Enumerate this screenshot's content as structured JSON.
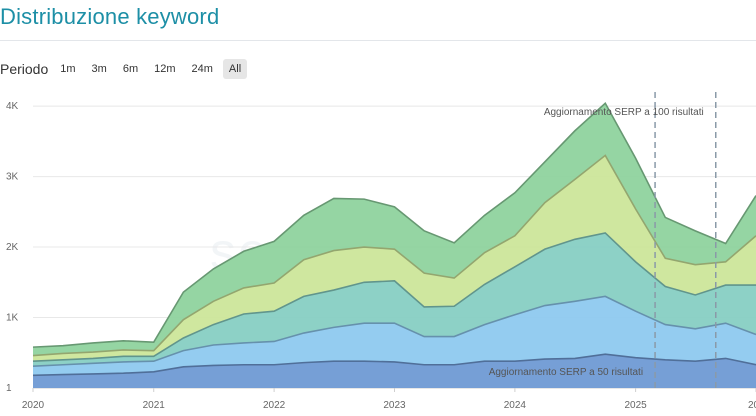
{
  "title": "Distribuzione keyword",
  "period": {
    "label": "Periodo",
    "options": [
      "1m",
      "3m",
      "6m",
      "12m",
      "24m",
      "All"
    ],
    "selected": "All"
  },
  "watermark": "seozoom",
  "chart_data": {
    "type": "area",
    "stacked": true,
    "x": [
      "2020-01",
      "2020-04",
      "2020-07",
      "2020-10",
      "2021-01",
      "2021-04",
      "2021-07",
      "2021-10",
      "2022-01",
      "2022-04",
      "2022-07",
      "2022-10",
      "2023-01",
      "2023-04",
      "2023-07",
      "2023-10",
      "2024-01",
      "2024-04",
      "2024-07",
      "2024-10",
      "2025-01",
      "2025-04",
      "2025-07",
      "2025-10",
      "2026-01"
    ],
    "x_ticks": [
      {
        "label": "2020",
        "date": "2020-01"
      },
      {
        "label": "2021",
        "date": "2021-01"
      },
      {
        "label": "2022",
        "date": "2022-01"
      },
      {
        "label": "2023",
        "date": "2023-01"
      },
      {
        "label": "2024",
        "date": "2024-01"
      },
      {
        "label": "2025",
        "date": "2025-01"
      },
      {
        "label": "202",
        "date": "2026-01"
      }
    ],
    "y_ticks": [
      {
        "label": "1",
        "value": 0
      },
      {
        "label": "1K",
        "value": 1000
      },
      {
        "label": "2K",
        "value": 2000
      },
      {
        "label": "3K",
        "value": 3000
      },
      {
        "label": "4K",
        "value": 4000
      }
    ],
    "ylim": [
      0,
      4200
    ],
    "grid": true,
    "series": [
      {
        "values": [
          180,
          190,
          200,
          210,
          230,
          300,
          320,
          330,
          330,
          360,
          380,
          380,
          370,
          330,
          330,
          380,
          380,
          410,
          420,
          480,
          430,
          400,
          380,
          420,
          330
        ],
        "color": "#6f9ad4"
      },
      {
        "values": [
          130,
          140,
          150,
          160,
          150,
          230,
          290,
          310,
          330,
          420,
          480,
          540,
          550,
          400,
          400,
          520,
          660,
          760,
          810,
          820,
          660,
          500,
          460,
          500,
          430
        ],
        "color": "#8ec9ef"
      },
      {
        "values": [
          70,
          70,
          70,
          80,
          70,
          180,
          290,
          410,
          430,
          520,
          530,
          580,
          600,
          420,
          430,
          570,
          680,
          800,
          880,
          900,
          700,
          540,
          480,
          540,
          700
        ],
        "color": "#87cfc3"
      },
      {
        "values": [
          80,
          90,
          90,
          90,
          80,
          260,
          330,
          370,
          400,
          520,
          560,
          500,
          450,
          480,
          400,
          450,
          440,
          660,
          850,
          1100,
          750,
          400,
          430,
          330,
          700
        ],
        "color": "#cce69a"
      },
      {
        "values": [
          120,
          110,
          130,
          130,
          120,
          390,
          460,
          520,
          590,
          630,
          740,
          680,
          600,
          600,
          500,
          530,
          610,
          580,
          690,
          740,
          720,
          580,
          480,
          260,
          570
        ],
        "color": "#8fd39e"
      }
    ],
    "vertical_markers": [
      {
        "date": "2025-03",
        "label": "Aggiornamento SERP a 50 risultati"
      },
      {
        "date": "2025-09",
        "label": "Aggiornamento SERP a 100 risultati"
      }
    ]
  }
}
